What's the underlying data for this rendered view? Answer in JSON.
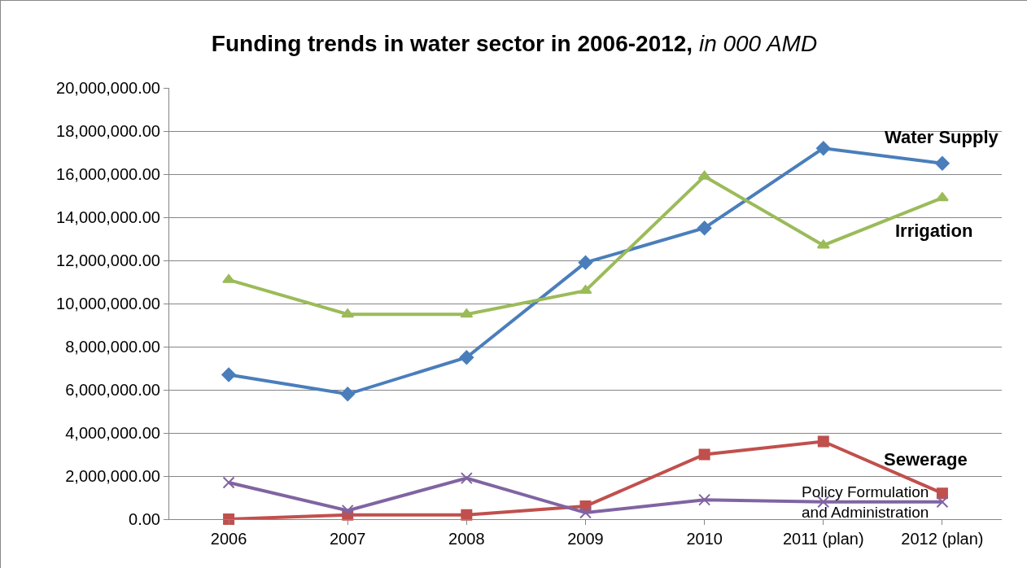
{
  "chart_data": {
    "type": "line",
    "title": "Funding trends in water sector in 2006-2012, in 000 AMD",
    "categories": [
      "2006",
      "2007",
      "2008",
      "2009",
      "2010",
      "2011 (plan)",
      "2012 (plan)"
    ],
    "series": [
      {
        "name": "Water Supply",
        "color": "#4a7ebb",
        "marker": "diamond",
        "values": [
          6700000,
          5800000,
          7500000,
          11900000,
          13500000,
          17200000,
          16500000
        ]
      },
      {
        "name": "Irrigation",
        "color": "#9bbb59",
        "marker": "triangle",
        "values": [
          11100000,
          9500000,
          9500000,
          10600000,
          15900000,
          12700000,
          14900000
        ]
      },
      {
        "name": "Sewerage",
        "color": "#c0504d",
        "marker": "square",
        "values": [
          0,
          200000,
          200000,
          600000,
          3000000,
          3600000,
          1200000
        ]
      },
      {
        "name": "Policy Formulation\nand Administration",
        "color": "#8064a2",
        "marker": "cross",
        "values": [
          1700000,
          400000,
          1900000,
          300000,
          900000,
          800000,
          800000
        ]
      }
    ],
    "ylim": [
      0,
      20000000
    ],
    "yticks": [
      {
        "value": 0,
        "label": "0.00"
      },
      {
        "value": 2000000,
        "label": "2,000,000.00"
      },
      {
        "value": 4000000,
        "label": "4,000,000.00"
      },
      {
        "value": 6000000,
        "label": "6,000,000.00"
      },
      {
        "value": 8000000,
        "label": "8,000,000.00"
      },
      {
        "value": 10000000,
        "label": "10,000,000.00"
      },
      {
        "value": 12000000,
        "label": "12,000,000.00"
      },
      {
        "value": 14000000,
        "label": "14,000,000.00"
      },
      {
        "value": 16000000,
        "label": "16,000,000.00"
      },
      {
        "value": 18000000,
        "label": "18,000,000.00"
      },
      {
        "value": 20000000,
        "label": "20,000,000.00"
      }
    ],
    "grid": "y",
    "legend": false,
    "line_style": "solid"
  }
}
